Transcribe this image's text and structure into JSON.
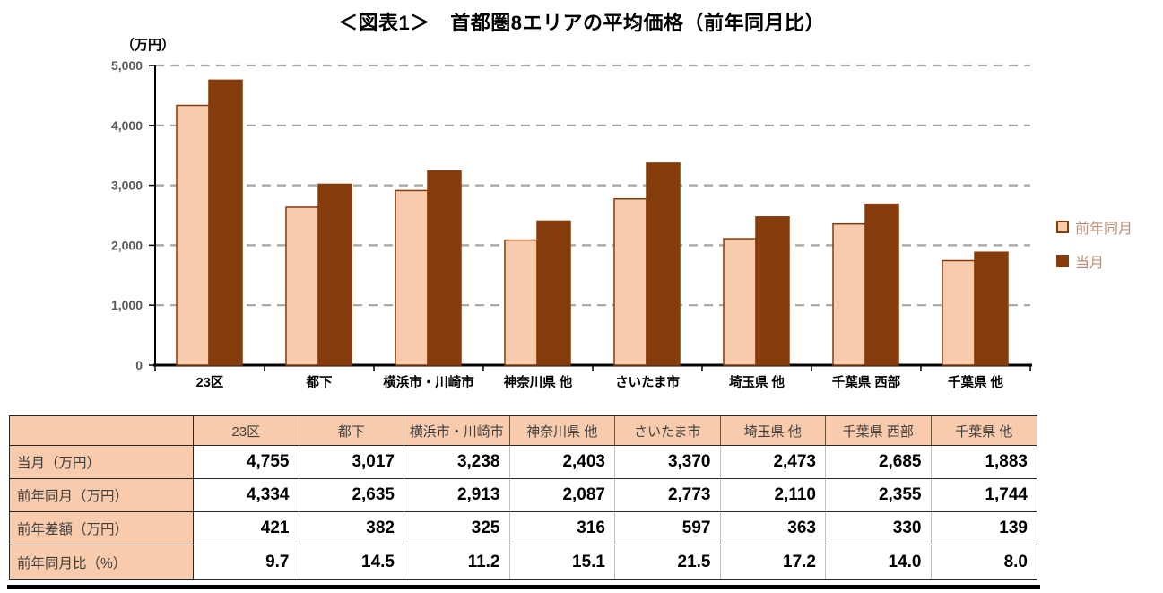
{
  "title": "＜図表1＞　首都圏8エリアの平均価格（前年同月比）",
  "chart_data": {
    "type": "bar",
    "title": "首都圏8エリアの平均価格（前年同月比）",
    "y_axis_unit": "（万円）",
    "categories": [
      "23区",
      "都下",
      "横浜市・川崎市",
      "神奈川県 他",
      "さいたま市",
      "埼玉県 他",
      "千葉県 西部",
      "千葉県 他"
    ],
    "series": [
      {
        "name": "前年同月",
        "values": [
          4334,
          2635,
          2913,
          2087,
          2773,
          2110,
          2355,
          1744
        ],
        "fill": "#F8CBAD",
        "border": "#843C0C"
      },
      {
        "name": "当月",
        "values": [
          4755,
          3017,
          3238,
          2403,
          3370,
          2473,
          2685,
          1883
        ],
        "fill": "#843C0C",
        "border": "#843C0C"
      }
    ],
    "ylim": [
      0,
      5000
    ],
    "ytick_step": 1000,
    "ytick_labels": [
      "0",
      "1,000",
      "2,000",
      "3,000",
      "4,000",
      "5,000"
    ],
    "grid": "horizontal-dashed",
    "legend_position": "right"
  },
  "table": {
    "corner": "",
    "columns": [
      "23区",
      "都下",
      "横浜市・川崎市",
      "神奈川県 他",
      "さいたま市",
      "埼玉県 他",
      "千葉県 西部",
      "千葉県 他"
    ],
    "rows": [
      {
        "label": "当月（万円）",
        "values": [
          "4,755",
          "3,017",
          "3,238",
          "2,403",
          "3,370",
          "2,473",
          "2,685",
          "1,883"
        ]
      },
      {
        "label": "前年同月（万円）",
        "values": [
          "4,334",
          "2,635",
          "2,913",
          "2,087",
          "2,773",
          "2,110",
          "2,355",
          "1,744"
        ]
      },
      {
        "label": "前年差額（万円）",
        "values": [
          "421",
          "382",
          "325",
          "316",
          "597",
          "363",
          "330",
          "139"
        ]
      },
      {
        "label": "前年同月比（%）",
        "values": [
          "9.7",
          "14.5",
          "11.2",
          "15.1",
          "21.5",
          "17.2",
          "14.0",
          "8.0"
        ]
      }
    ]
  },
  "colors": {
    "bar_prev_fill": "#F8CBAD",
    "bar_prev_border": "#843C0C",
    "bar_current_fill": "#843C0C",
    "gridline": "#A6A6A6",
    "axis": "#000000",
    "ytick_text": "#595959",
    "xlabel_text": "#000000",
    "legend_text": "#BE8E74",
    "table_header_bg": "#F8CBAD",
    "table_border_dark": "#262626",
    "table_border_light": "#BFBFBF"
  }
}
